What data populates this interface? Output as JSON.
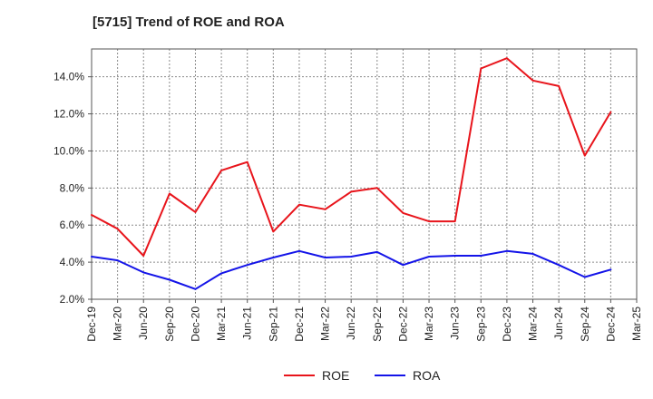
{
  "chart_data": {
    "type": "line",
    "title": "[5715]  Trend of ROE and ROA",
    "categories": [
      "Dec-19",
      "Mar-20",
      "Jun-20",
      "Sep-20",
      "Dec-20",
      "Mar-21",
      "Jun-21",
      "Sep-21",
      "Dec-21",
      "Mar-22",
      "Jun-22",
      "Sep-22",
      "Dec-22",
      "Mar-23",
      "Jun-23",
      "Sep-23",
      "Dec-23",
      "Mar-24",
      "Jun-24",
      "Sep-24",
      "Dec-24",
      "Mar-25"
    ],
    "ylim": [
      2.0,
      15.5
    ],
    "yticks": [
      2.0,
      4.0,
      6.0,
      8.0,
      10.0,
      12.0,
      14.0
    ],
    "ytick_labels": [
      "2.0%",
      "4.0%",
      "6.0%",
      "8.0%",
      "10.0%",
      "12.0%",
      "14.0%"
    ],
    "grid": true,
    "legend_position": "bottom",
    "series": [
      {
        "name": "ROE",
        "color": "#e8141b",
        "values": [
          6.55,
          5.8,
          4.35,
          7.7,
          6.7,
          8.95,
          9.4,
          5.65,
          7.1,
          6.85,
          7.8,
          8.0,
          6.65,
          6.2,
          6.2,
          14.45,
          15.0,
          13.8,
          13.5,
          9.75,
          12.1,
          null
        ]
      },
      {
        "name": "ROA",
        "color": "#1414e8",
        "values": [
          4.3,
          4.1,
          3.45,
          3.05,
          2.55,
          3.4,
          3.85,
          4.25,
          4.6,
          4.25,
          4.3,
          4.55,
          3.85,
          4.3,
          4.35,
          4.35,
          4.6,
          4.45,
          3.85,
          3.2,
          3.6,
          null
        ]
      }
    ]
  }
}
